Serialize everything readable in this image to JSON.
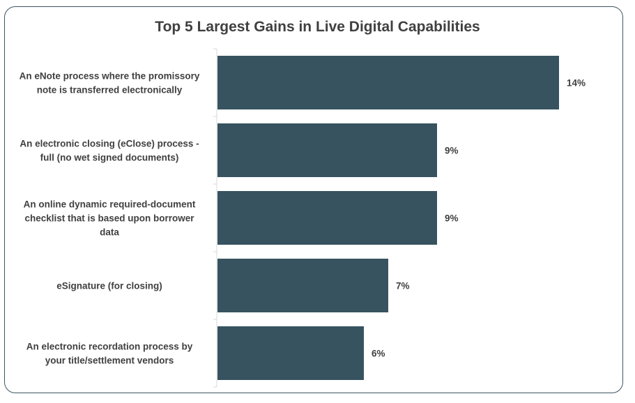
{
  "chart_data": {
    "type": "bar",
    "orientation": "horizontal",
    "title": "Top 5 Largest Gains in Live Digital Capabilities",
    "categories": [
      [
        "An eNote process where the promissory",
        "note is transferred electronically"
      ],
      [
        "An electronic closing (eClose) process -",
        "full (no wet signed documents)"
      ],
      [
        "An online dynamic required-document",
        "checklist that is based upon borrower",
        "data"
      ],
      [
        "eSignature (for closing)"
      ],
      [
        "An electronic recordation process by",
        "your title/settlement vendors"
      ]
    ],
    "values": [
      14,
      9,
      9,
      7,
      6
    ],
    "value_labels": [
      "14%",
      "9%",
      "9%",
      "7%",
      "6%"
    ],
    "unit": "%",
    "bar_color": "#36535f",
    "legend": "none",
    "grid": false
  }
}
